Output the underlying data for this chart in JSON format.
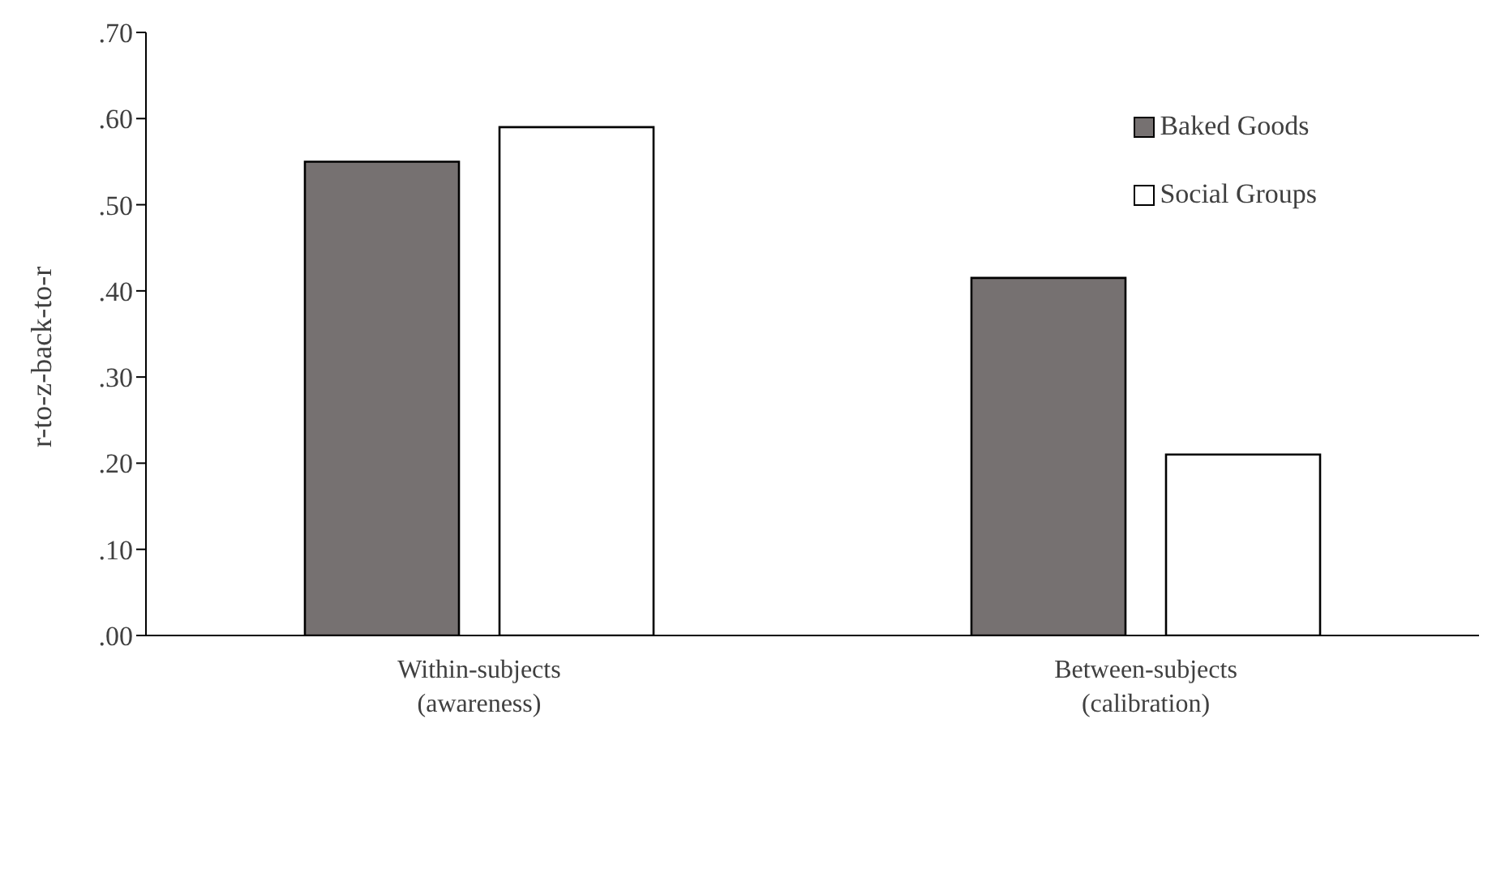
{
  "chart_data": {
    "type": "bar",
    "ylabel": "r-to-z-back-to-r",
    "categories": [
      "Within-subjects (awareness)",
      "Between-subjects (calibration)"
    ],
    "series": [
      {
        "name": "Baked Goods",
        "color": "#767171",
        "values": [
          0.55,
          0.415
        ]
      },
      {
        "name": "Social Groups",
        "color": "#ffffff",
        "values": [
          0.59,
          0.21
        ]
      }
    ],
    "ylim": [
      0,
      0.7
    ],
    "yticks": [
      {
        "value": 0,
        "label": ".00"
      },
      {
        "value": 0.1,
        "label": ".10"
      },
      {
        "value": 0.2,
        "label": ".20"
      },
      {
        "value": 0.3,
        "label": ".30"
      },
      {
        "value": 0.4,
        "label": ".40"
      },
      {
        "value": 0.5,
        "label": ".50"
      },
      {
        "value": 0.6,
        "label": ".60"
      },
      {
        "value": 0.7,
        "label": ".70"
      }
    ],
    "grid": false,
    "legend": "top right"
  }
}
